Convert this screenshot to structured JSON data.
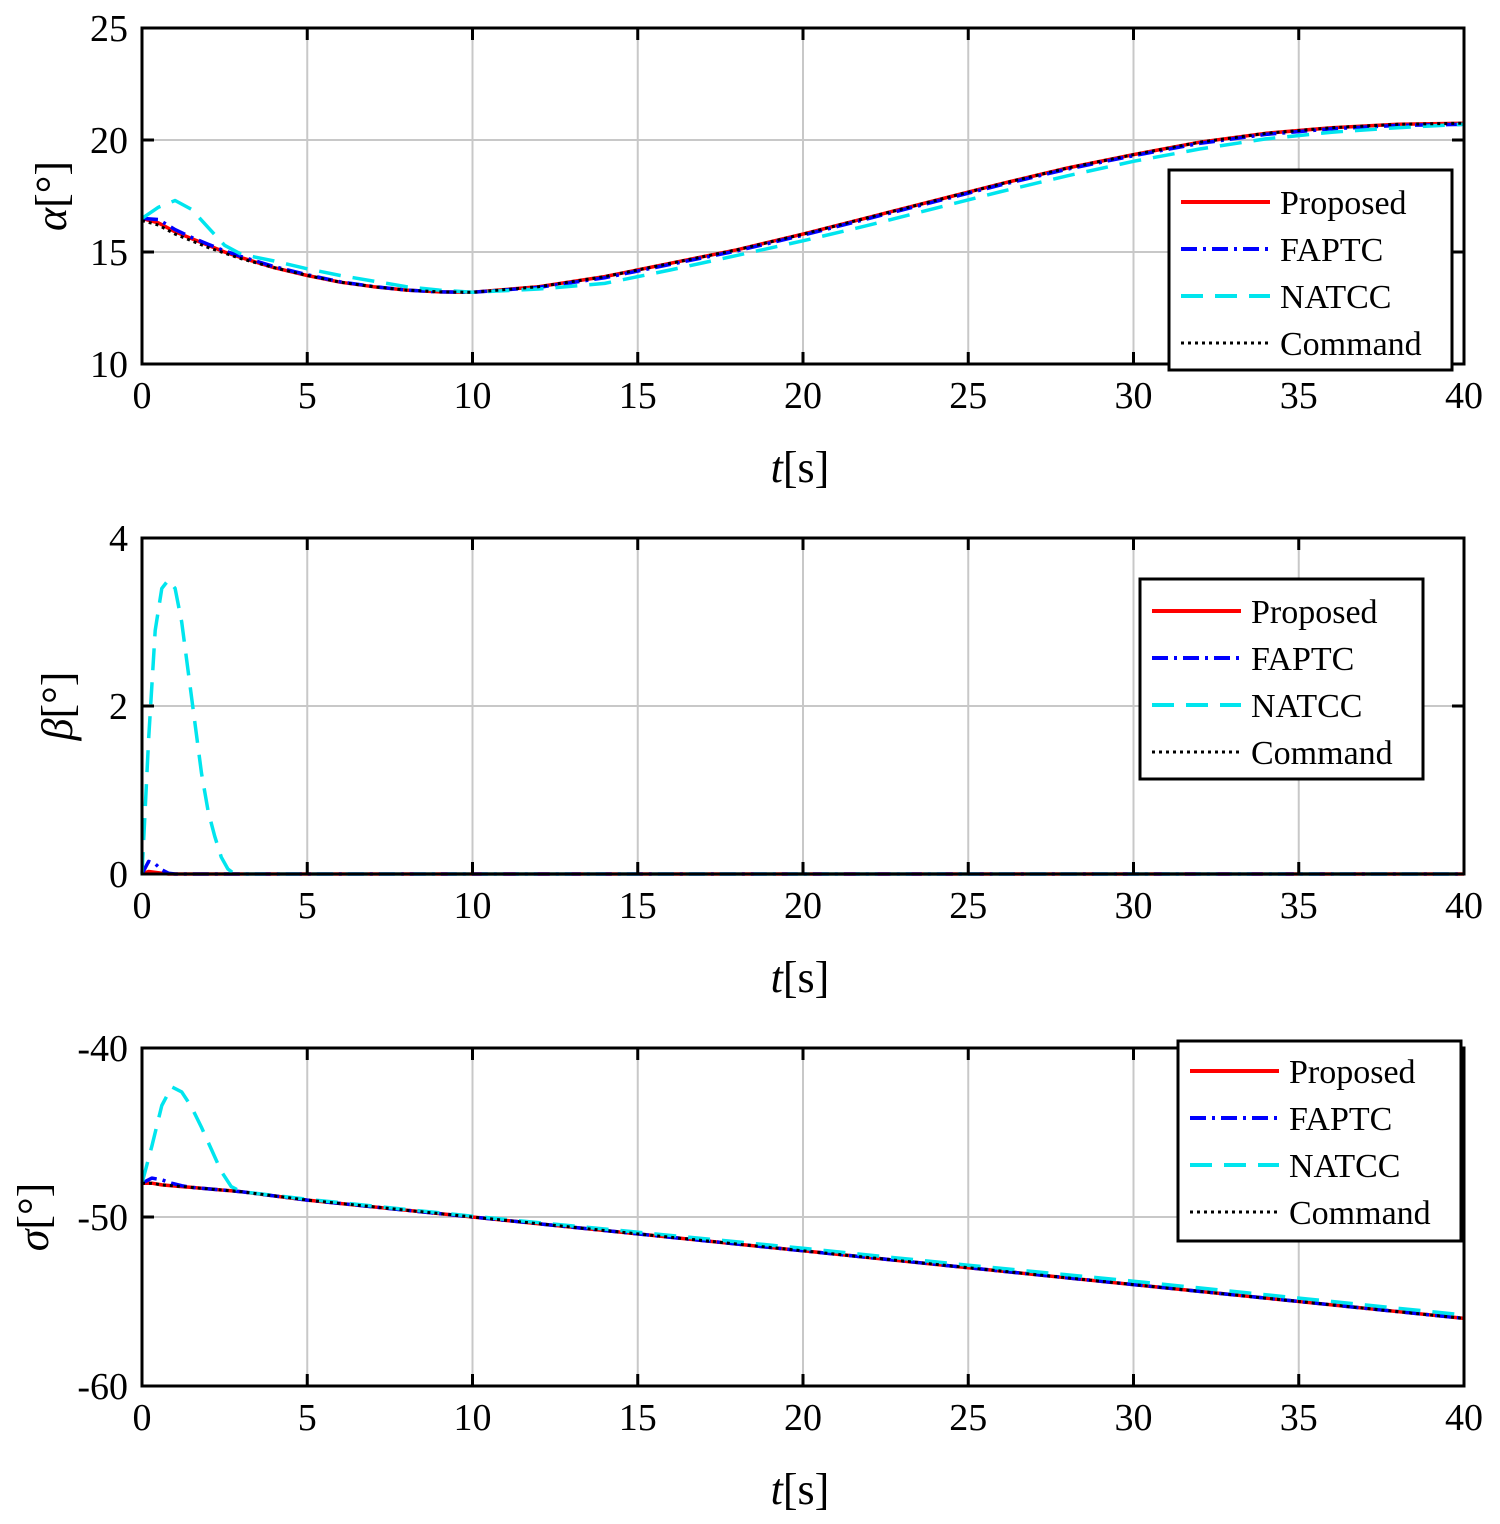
{
  "chart_data": [
    {
      "type": "line",
      "id": "alpha",
      "xlabel": {
        "var": "t",
        "unit": "[s]"
      },
      "ylabel": {
        "var": "α",
        "unit": "[°]"
      },
      "xlim": [
        0,
        40
      ],
      "ylim": [
        10,
        25
      ],
      "xticks": [
        0,
        5,
        10,
        15,
        20,
        25,
        30,
        35,
        40
      ],
      "yticks": [
        10,
        15,
        20,
        25
      ],
      "xtick_labels": [
        "0",
        "5",
        "10",
        "15",
        "20",
        "25",
        "30",
        "35",
        "40"
      ],
      "ytick_labels": [
        "10",
        "15",
        "20",
        "25"
      ],
      "grid": true,
      "legend": "right",
      "x": [
        0,
        0.5,
        1,
        1.5,
        2,
        2.5,
        3,
        4,
        5,
        6,
        7,
        8,
        9,
        10,
        12,
        14,
        16,
        18,
        20,
        22,
        24,
        26,
        28,
        30,
        32,
        34,
        36,
        38,
        40
      ],
      "series": [
        {
          "name": "Proposed",
          "color": "#ff0000",
          "style": "solid",
          "values": [
            16.5,
            16.3,
            15.9,
            15.6,
            15.3,
            15.0,
            14.75,
            14.3,
            13.95,
            13.65,
            13.45,
            13.3,
            13.22,
            13.2,
            13.45,
            13.9,
            14.5,
            15.1,
            15.8,
            16.55,
            17.3,
            18.05,
            18.75,
            19.35,
            19.9,
            20.3,
            20.55,
            20.7,
            20.75
          ]
        },
        {
          "name": "FAPTC",
          "color": "#0000ff",
          "style": "dashdot",
          "values": [
            16.5,
            16.45,
            16.0,
            15.65,
            15.35,
            15.05,
            14.8,
            14.35,
            13.98,
            13.67,
            13.46,
            13.3,
            13.22,
            13.2,
            13.42,
            13.85,
            14.45,
            15.05,
            15.75,
            16.5,
            17.25,
            18.0,
            18.7,
            19.3,
            19.85,
            20.25,
            20.5,
            20.65,
            20.7
          ]
        },
        {
          "name": "NATCC",
          "color": "#00e5ee",
          "style": "dashed",
          "values": [
            16.5,
            17.0,
            17.3,
            16.9,
            16.1,
            15.3,
            14.9,
            14.6,
            14.25,
            13.95,
            13.7,
            13.45,
            13.3,
            13.2,
            13.35,
            13.6,
            14.2,
            14.85,
            15.5,
            16.2,
            16.95,
            17.7,
            18.4,
            19.05,
            19.6,
            20.05,
            20.35,
            20.55,
            20.7
          ]
        },
        {
          "name": "Command",
          "color": "#000000",
          "style": "dotted",
          "values": [
            16.4,
            16.2,
            15.8,
            15.5,
            15.2,
            14.95,
            14.7,
            14.3,
            13.95,
            13.65,
            13.45,
            13.3,
            13.22,
            13.2,
            13.45,
            13.9,
            14.5,
            15.1,
            15.8,
            16.55,
            17.3,
            18.05,
            18.75,
            19.35,
            19.9,
            20.3,
            20.55,
            20.7,
            20.75
          ]
        }
      ]
    },
    {
      "type": "line",
      "id": "beta",
      "xlabel": {
        "var": "t",
        "unit": "[s]"
      },
      "ylabel": {
        "var": "β",
        "unit": "[°]"
      },
      "xlim": [
        0,
        40
      ],
      "ylim": [
        0,
        4
      ],
      "xticks": [
        0,
        5,
        10,
        15,
        20,
        25,
        30,
        35,
        40
      ],
      "yticks": [
        0,
        2,
        4
      ],
      "xtick_labels": [
        "0",
        "5",
        "10",
        "15",
        "20",
        "25",
        "30",
        "35",
        "40"
      ],
      "ytick_labels": [
        "0",
        "2",
        "4"
      ],
      "grid": true,
      "legend": "top-right",
      "x": [
        0,
        0.2,
        0.4,
        0.6,
        0.8,
        1.0,
        1.2,
        1.4,
        1.6,
        1.8,
        2.0,
        2.2,
        2.4,
        2.6,
        2.8,
        3.0,
        5,
        10,
        15,
        20,
        25,
        30,
        35,
        40
      ],
      "series": [
        {
          "name": "Proposed",
          "color": "#ff0000",
          "style": "solid",
          "values": [
            0,
            0.03,
            0.02,
            0.01,
            0,
            0,
            0,
            0,
            0,
            0,
            0,
            0,
            0,
            0,
            0,
            0,
            0,
            0,
            0,
            0,
            0,
            0,
            0,
            0
          ]
        },
        {
          "name": "FAPTC",
          "color": "#0000ff",
          "style": "dashdot",
          "values": [
            0,
            0.15,
            0.12,
            0.05,
            0.01,
            0,
            0,
            0,
            0,
            0,
            0,
            0,
            0,
            0,
            0,
            0,
            0,
            0,
            0,
            0,
            0,
            0,
            0,
            0
          ]
        },
        {
          "name": "NATCC",
          "color": "#00e5ee",
          "style": "dashed",
          "values": [
            0,
            1.6,
            2.9,
            3.4,
            3.5,
            3.4,
            3.0,
            2.4,
            1.8,
            1.2,
            0.75,
            0.45,
            0.2,
            0.06,
            0,
            0,
            0,
            0,
            0,
            0,
            0,
            0,
            0,
            0
          ]
        },
        {
          "name": "Command",
          "color": "#000000",
          "style": "dotted",
          "values": [
            0,
            0,
            0,
            0,
            0,
            0,
            0,
            0,
            0,
            0,
            0,
            0,
            0,
            0,
            0,
            0,
            0,
            0,
            0,
            0,
            0,
            0,
            0,
            0
          ]
        }
      ]
    },
    {
      "type": "line",
      "id": "sigma",
      "xlabel": {
        "var": "t",
        "unit": "[s]"
      },
      "ylabel": {
        "var": "σ",
        "unit": "[°]"
      },
      "xlim": [
        0,
        40
      ],
      "ylim": [
        -60,
        -40
      ],
      "xticks": [
        0,
        5,
        10,
        15,
        20,
        25,
        30,
        35,
        40
      ],
      "yticks": [
        -60,
        -50,
        -40
      ],
      "xtick_labels": [
        "0",
        "5",
        "10",
        "15",
        "20",
        "25",
        "30",
        "35",
        "40"
      ],
      "ytick_labels": [
        "-60",
        "-50",
        "-40"
      ],
      "grid": true,
      "legend": "top-right",
      "x": [
        0,
        0.3,
        0.6,
        0.9,
        1.2,
        1.5,
        1.8,
        2.1,
        2.4,
        2.7,
        3.0,
        5,
        10,
        15,
        20,
        25,
        30,
        35,
        40
      ],
      "series": [
        {
          "name": "Proposed",
          "color": "#ff0000",
          "style": "solid",
          "values": [
            -48.0,
            -48.0,
            -48.1,
            -48.15,
            -48.2,
            -48.25,
            -48.3,
            -48.35,
            -48.4,
            -48.45,
            -48.5,
            -49.0,
            -50.0,
            -51.0,
            -52.0,
            -53.0,
            -54.0,
            -55.0,
            -56.0
          ]
        },
        {
          "name": "FAPTC",
          "color": "#0000ff",
          "style": "dashdot",
          "values": [
            -48.0,
            -47.7,
            -47.8,
            -48.0,
            -48.15,
            -48.25,
            -48.3,
            -48.35,
            -48.4,
            -48.45,
            -48.5,
            -49.0,
            -50.0,
            -51.0,
            -52.0,
            -53.0,
            -54.0,
            -55.0,
            -56.0
          ]
        },
        {
          "name": "NATCC",
          "color": "#00e5ee",
          "style": "dashed",
          "values": [
            -48.0,
            -45.8,
            -43.4,
            -42.3,
            -42.6,
            -43.5,
            -44.7,
            -46.0,
            -47.3,
            -48.2,
            -48.5,
            -48.95,
            -49.95,
            -50.9,
            -51.85,
            -52.85,
            -53.8,
            -54.8,
            -55.8
          ]
        },
        {
          "name": "Command",
          "color": "#000000",
          "style": "dotted",
          "values": [
            -48.0,
            -48.0,
            -48.1,
            -48.15,
            -48.2,
            -48.25,
            -48.3,
            -48.35,
            -48.4,
            -48.45,
            -48.5,
            -49.0,
            -50.0,
            -51.0,
            -52.0,
            -53.0,
            -54.0,
            -55.0,
            -56.0
          ]
        }
      ]
    }
  ]
}
